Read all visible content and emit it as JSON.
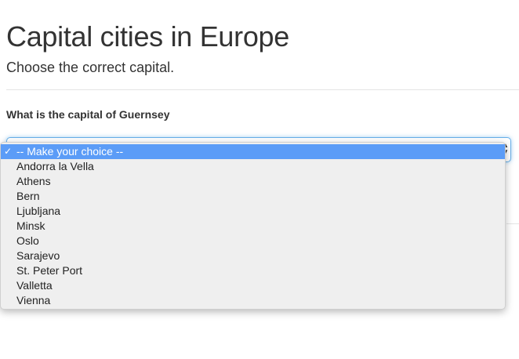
{
  "header": {
    "title": "Capital cities in Europe",
    "subtitle": "Choose the correct capital."
  },
  "question": {
    "label": "What is the capital of Guernsey"
  },
  "select": {
    "selected_label": "-- Make your choice --",
    "checkmark": "✓",
    "arrows_icon": "updown-chevron-icon",
    "options": [
      "Andorra la Vella",
      "Athens",
      "Bern",
      "Ljubljana",
      "Minsk",
      "Oslo",
      "Sarajevo",
      "St. Peter Port",
      "Valletta",
      "Vienna"
    ]
  },
  "colors": {
    "highlight": "#5b9cf7",
    "focus_border": "#66afe9",
    "dropdown_bg": "#efefef",
    "text": "#333333"
  }
}
